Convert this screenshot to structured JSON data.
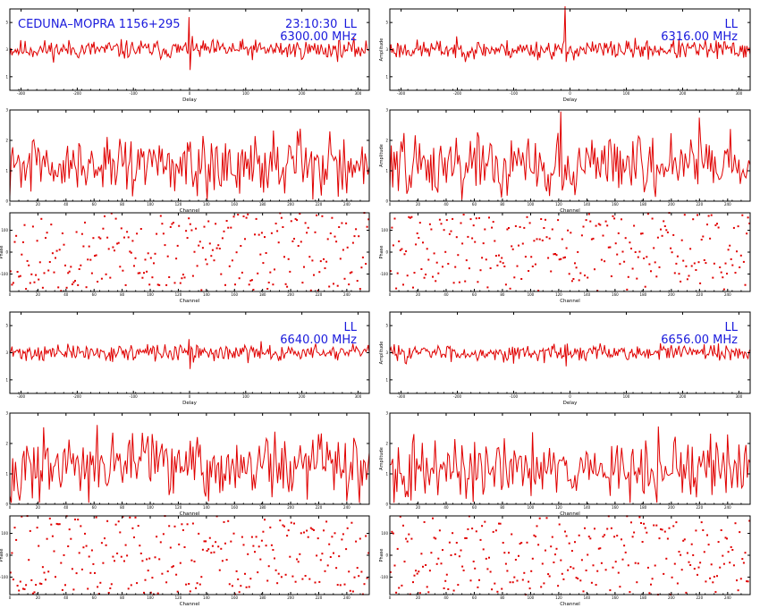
{
  "figure": {
    "heading_left": "CEDUNA–MOPRA 1156+295",
    "time": "23:10:30",
    "colors": {
      "trace": "#e00000",
      "annotation": "#1a1adc",
      "axes": "#000000"
    }
  },
  "chart_data": [
    {
      "type": "line",
      "panel": "delay",
      "block": 0,
      "col": 0,
      "pol": "LL",
      "freq": "6300.00 MHz",
      "xlabel": "Delay",
      "ylabel": "",
      "ylim": [
        0,
        6
      ],
      "yticks": [
        "1",
        "3",
        "5"
      ],
      "xticks": [
        "-300",
        "-200",
        "-100",
        "0",
        "100",
        "200",
        "300"
      ],
      "spike": {
        "x": 0,
        "up": 2.4,
        "down": -1.5
      },
      "seed": 11,
      "baseline": 3,
      "noise": 0.35,
      "npts": 330,
      "xlim": [
        -320,
        320
      ]
    },
    {
      "type": "line",
      "panel": "delay",
      "block": 0,
      "col": 1,
      "pol": "LL",
      "freq": "6316.00 MHz",
      "xlabel": "Delay",
      "ylabel": "Amplitude",
      "ylim": [
        0,
        6
      ],
      "yticks": [
        "1",
        "3",
        "5"
      ],
      "xticks": [
        "-300",
        "-200",
        "-100",
        "0",
        "100",
        "200",
        "300"
      ],
      "spike": {
        "x": -8,
        "up": 3.2,
        "down": -0.9
      },
      "seed": 23,
      "baseline": 3,
      "noise": 0.35,
      "npts": 330,
      "xlim": [
        -320,
        320
      ]
    },
    {
      "type": "line",
      "panel": "channel",
      "block": 0,
      "col": 0,
      "xlabel": "Channel",
      "ylabel": "",
      "ylim": [
        0,
        3
      ],
      "yticks": [
        "0",
        "1",
        "2",
        "3"
      ],
      "xticks": [
        "0",
        "20",
        "40",
        "60",
        "80",
        "100",
        "120",
        "140",
        "160",
        "180",
        "200",
        "220",
        "240"
      ],
      "seed": 31,
      "baseline": 1.15,
      "noise": 0.45,
      "npts": 256,
      "xlim": [
        0,
        256
      ]
    },
    {
      "type": "line",
      "panel": "channel",
      "block": 0,
      "col": 1,
      "xlabel": "Channel",
      "ylabel": "Amplitude",
      "ylim": [
        0,
        3
      ],
      "yticks": [
        "0",
        "1",
        "2",
        "3"
      ],
      "xticks": [
        "0",
        "20",
        "40",
        "60",
        "80",
        "100",
        "120",
        "140",
        "160",
        "180",
        "200",
        "220",
        "240"
      ],
      "seed": 47,
      "baseline": 1.2,
      "noise": 0.55,
      "npts": 256,
      "xlim": [
        0,
        256
      ]
    },
    {
      "type": "scatter",
      "panel": "phase",
      "block": 0,
      "col": 0,
      "xlabel": "Channel",
      "ylabel": "Phase",
      "ylim": [
        -180,
        180
      ],
      "yticks": [
        "-100",
        "0",
        "100"
      ],
      "xticks": [
        "0",
        "20",
        "40",
        "60",
        "80",
        "100",
        "120",
        "140",
        "160",
        "180",
        "200",
        "220",
        "240"
      ],
      "seed": 53,
      "npts": 256,
      "xlim": [
        0,
        256
      ]
    },
    {
      "type": "scatter",
      "panel": "phase",
      "block": 0,
      "col": 1,
      "xlabel": "Channel",
      "ylabel": "Phase",
      "ylim": [
        -180,
        180
      ],
      "yticks": [
        "-100",
        "0",
        "100"
      ],
      "xticks": [
        "0",
        "20",
        "40",
        "60",
        "80",
        "100",
        "120",
        "140",
        "160",
        "180",
        "200",
        "220",
        "240"
      ],
      "seed": 61,
      "npts": 256,
      "xlim": [
        0,
        256
      ]
    },
    {
      "type": "line",
      "panel": "delay",
      "block": 1,
      "col": 0,
      "pol": "LL",
      "freq": "6640.00 MHz",
      "xlabel": "Delay",
      "ylabel": "",
      "ylim": [
        0,
        6
      ],
      "yticks": [
        "1",
        "3",
        "5"
      ],
      "xticks": [
        "-300",
        "-200",
        "-100",
        "0",
        "100",
        "200",
        "300"
      ],
      "spike": {
        "x": 0,
        "up": 1.0,
        "down": -1.2
      },
      "seed": 71,
      "baseline": 3,
      "noise": 0.3,
      "npts": 330,
      "xlim": [
        -320,
        320
      ]
    },
    {
      "type": "line",
      "panel": "delay",
      "block": 1,
      "col": 1,
      "pol": "LL",
      "freq": "6656.00 MHz",
      "xlabel": "Delay",
      "ylabel": "Amplitude",
      "ylim": [
        0,
        6
      ],
      "yticks": [
        "1",
        "3",
        "5"
      ],
      "xticks": [
        "-300",
        "-200",
        "-100",
        "0",
        "100",
        "200",
        "300"
      ],
      "spike": {
        "x": -8,
        "up": 0.6,
        "down": -1.0
      },
      "seed": 83,
      "baseline": 3,
      "noise": 0.3,
      "npts": 330,
      "xlim": [
        -320,
        320
      ]
    },
    {
      "type": "line",
      "panel": "channel",
      "block": 1,
      "col": 0,
      "xlabel": "Channel",
      "ylabel": "",
      "ylim": [
        0,
        3
      ],
      "yticks": [
        "0",
        "1",
        "2",
        "3"
      ],
      "xticks": [
        "0",
        "20",
        "40",
        "60",
        "80",
        "100",
        "120",
        "140",
        "160",
        "180",
        "200",
        "220",
        "240"
      ],
      "seed": 97,
      "baseline": 1.2,
      "noise": 0.5,
      "npts": 256,
      "xlim": [
        0,
        256
      ]
    },
    {
      "type": "line",
      "panel": "channel",
      "block": 1,
      "col": 1,
      "xlabel": "Channel",
      "ylabel": "Amplitude",
      "ylim": [
        0,
        3
      ],
      "yticks": [
        "0",
        "1",
        "2",
        "3"
      ],
      "xticks": [
        "0",
        "20",
        "40",
        "60",
        "80",
        "100",
        "120",
        "140",
        "160",
        "180",
        "200",
        "220",
        "240"
      ],
      "seed": 101,
      "baseline": 1.1,
      "noise": 0.5,
      "npts": 256,
      "xlim": [
        0,
        256
      ]
    },
    {
      "type": "scatter",
      "panel": "phase",
      "block": 1,
      "col": 0,
      "xlabel": "Channel",
      "ylabel": "Phase",
      "ylim": [
        -180,
        180
      ],
      "yticks": [
        "-100",
        "0",
        "100"
      ],
      "xticks": [
        "0",
        "20",
        "40",
        "60",
        "80",
        "100",
        "120",
        "140",
        "160",
        "180",
        "200",
        "220",
        "240"
      ],
      "seed": 113,
      "npts": 256,
      "xlim": [
        0,
        256
      ]
    },
    {
      "type": "scatter",
      "panel": "phase",
      "block": 1,
      "col": 1,
      "xlabel": "Channel",
      "ylabel": "Phase",
      "ylim": [
        -180,
        180
      ],
      "yticks": [
        "-100",
        "0",
        "100"
      ],
      "xticks": [
        "0",
        "20",
        "40",
        "60",
        "80",
        "100",
        "120",
        "140",
        "160",
        "180",
        "200",
        "220",
        "240"
      ],
      "seed": 127,
      "npts": 256,
      "xlim": [
        0,
        256
      ]
    }
  ]
}
